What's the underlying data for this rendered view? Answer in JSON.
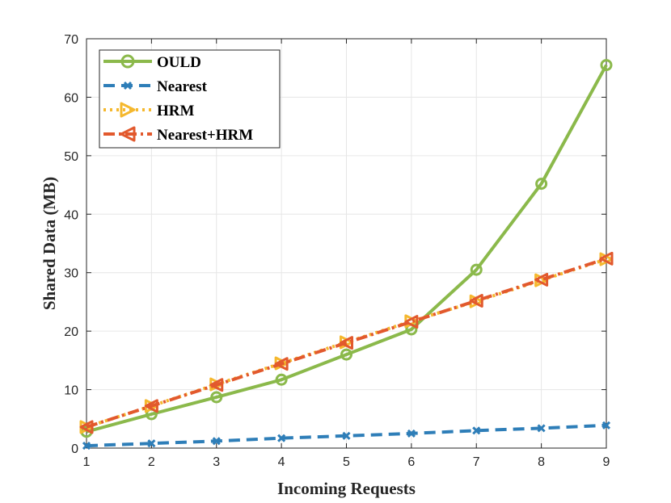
{
  "chart_data": {
    "type": "line",
    "title": "",
    "xlabel": "Incoming Requests",
    "ylabel": "Shared Data (MB)",
    "xlim": [
      1,
      9
    ],
    "ylim": [
      0,
      70
    ],
    "xticks": [
      "1",
      "2",
      "3",
      "4",
      "5",
      "6",
      "7",
      "8",
      "9"
    ],
    "yticks": [
      "0",
      "10",
      "20",
      "30",
      "40",
      "50",
      "60",
      "70"
    ],
    "grid": true,
    "legend_position": "top-left",
    "x": [
      1,
      2,
      3,
      4,
      5,
      6,
      7,
      8,
      9
    ],
    "series": [
      {
        "name": "OULD",
        "color": "#8BB94B",
        "style": "solid",
        "marker": "circle",
        "values": [
          2.8,
          5.8,
          8.7,
          11.7,
          16.0,
          20.3,
          30.5,
          45.2,
          65.5
        ]
      },
      {
        "name": "Nearest",
        "color": "#2E7EB8",
        "style": "dashed",
        "marker": "x",
        "values": [
          0.4,
          0.8,
          1.2,
          1.7,
          2.1,
          2.5,
          3.0,
          3.4,
          3.9
        ]
      },
      {
        "name": "HRM",
        "color": "#F5B82E",
        "style": "dotted",
        "marker": "triangle-right",
        "values": [
          3.6,
          7.2,
          10.9,
          14.5,
          18.1,
          21.7,
          25.1,
          28.7,
          32.3
        ]
      },
      {
        "name": "Nearest+HRM",
        "color": "#E2592D",
        "style": "dashdot",
        "marker": "triangle-left",
        "values": [
          3.6,
          7.2,
          10.8,
          14.4,
          18.0,
          21.6,
          25.2,
          28.8,
          32.4
        ]
      }
    ]
  }
}
